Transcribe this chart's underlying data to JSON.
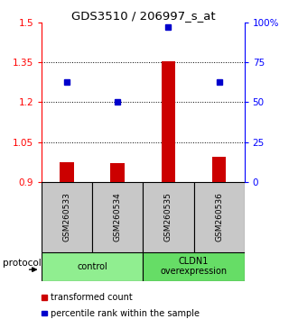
{
  "title": "GDS3510 / 206997_s_at",
  "samples": [
    "GSM260533",
    "GSM260534",
    "GSM260535",
    "GSM260536"
  ],
  "groups": [
    {
      "label": "control",
      "color": "#90EE90",
      "indices": [
        0,
        1
      ]
    },
    {
      "label": "CLDN1\noverexpression",
      "color": "#66DD66",
      "indices": [
        2,
        3
      ]
    }
  ],
  "bar_values": [
    0.975,
    0.97,
    1.355,
    0.995
  ],
  "dot_percentiles": [
    62.5,
    50.0,
    97.0,
    62.5
  ],
  "ylim_left": [
    0.9,
    1.5
  ],
  "ylim_right": [
    0.0,
    100.0
  ],
  "yticks_left": [
    0.9,
    1.05,
    1.2,
    1.35,
    1.5
  ],
  "ytick_labels_left": [
    "0.9",
    "1.05",
    "1.2",
    "1.35",
    "1.5"
  ],
  "yticks_right": [
    0,
    25,
    50,
    75,
    100
  ],
  "ytick_labels_right": [
    "0",
    "25",
    "50",
    "75",
    "100%"
  ],
  "bar_color": "#CC0000",
  "dot_color": "#0000CC",
  "bar_bottom": 0.9,
  "hline_dotted": [
    1.05,
    1.2,
    1.35
  ],
  "legend_bar_label": "transformed count",
  "legend_dot_label": "percentile rank within the sample",
  "protocol_label": "protocol",
  "sample_box_color": "#C8C8C8",
  "x_positions": [
    1,
    2,
    3,
    4
  ],
  "bar_width": 0.28
}
